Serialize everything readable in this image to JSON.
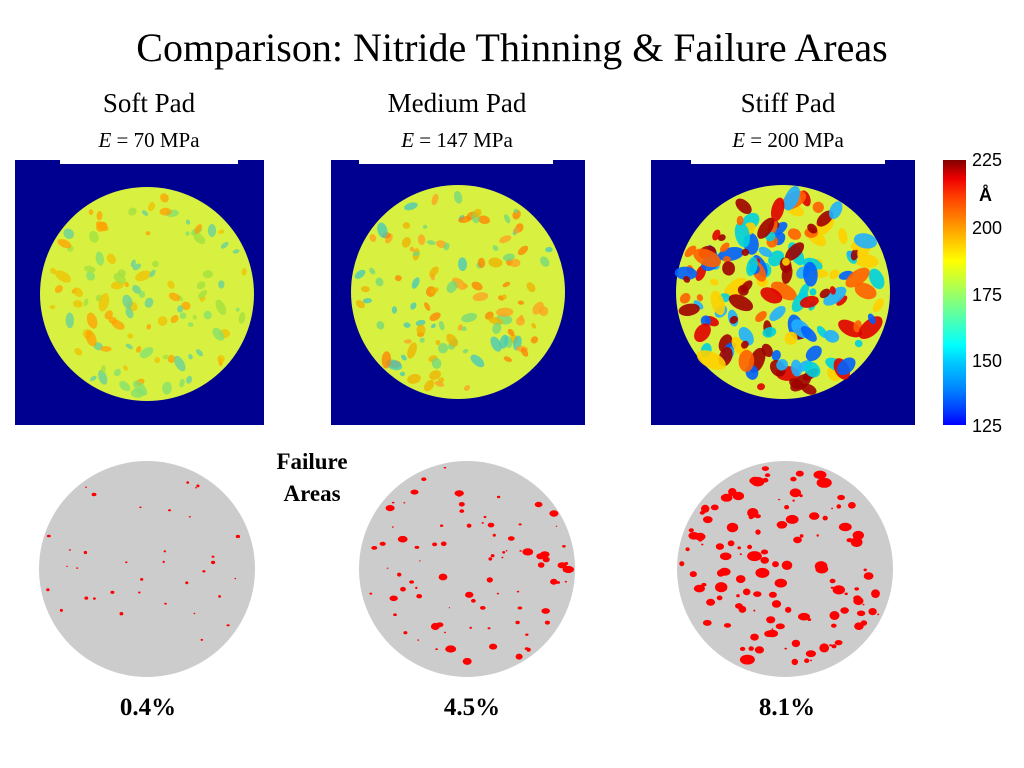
{
  "title": "Comparison: Nitride Thinning & Failure Areas",
  "pads": [
    {
      "name": "Soft Pad",
      "modulus_sym": "E",
      "modulus_rest": " = 70 MPa",
      "failure_pct": "0.4%",
      "failure_fraction": 0.004
    },
    {
      "name": "Medium Pad",
      "modulus_sym": "E",
      "modulus_rest": " = 147 MPa",
      "failure_pct": "4.5%",
      "failure_fraction": 0.045
    },
    {
      "name": "Stiff Pad",
      "modulus_sym": "E",
      "modulus_rest": " = 200 MPa",
      "failure_pct": "8.1%",
      "failure_fraction": 0.081
    }
  ],
  "failure_label_line1": "Failure",
  "failure_label_line2": "Areas",
  "colorbar": {
    "unit": "Å",
    "ticks": [
      "225",
      "200",
      "175",
      "150",
      "125"
    ],
    "min": 125,
    "max": 225
  },
  "colors": {
    "background_blue": "#000090",
    "wafer_yellow": "#d8f040",
    "failure_red": "#ff0000",
    "wafer_gray": "#cccccc"
  }
}
